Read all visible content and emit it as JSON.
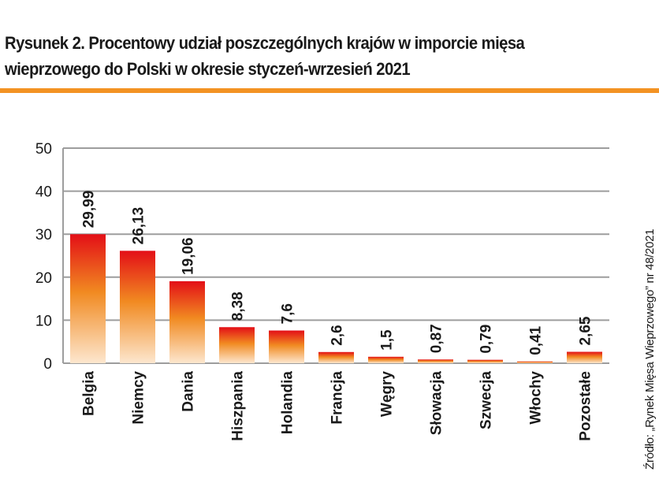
{
  "title_line1": "Rysunek 2. Procentowy udział poszczególnych krajów w imporcie mięsa",
  "title_line2": "wieprzowego do Polski w okresie styczeń-wrzesień 2021",
  "source": "Źródło: „Rynek Mięsa Wieprzowego” nr 48/2021",
  "colors": {
    "accent_rule": "#f39323",
    "bar_top": "#e30f17",
    "bar_mid": "#f18a21",
    "bar_bottom": "#fde7cf",
    "grid": "#9d9d9d"
  },
  "chart_data": {
    "type": "bar",
    "title": "Rysunek 2. Procentowy udział poszczególnych krajów w imporcie mięsa wieprzowego do Polski w okresie styczeń-wrzesień 2021",
    "xlabel": "",
    "ylabel": "",
    "ylim": [
      0,
      50
    ],
    "yticks": [
      0,
      10,
      20,
      30,
      40,
      50
    ],
    "grid": true,
    "categories": [
      "Belgia",
      "Niemcy",
      "Dania",
      "Hiszpania",
      "Holandia",
      "Francja",
      "Węgry",
      "Słowacja",
      "Szwecja",
      "Włochy",
      "Pozostałe"
    ],
    "values": [
      29.99,
      26.13,
      19.06,
      8.38,
      7.6,
      2.6,
      1.5,
      0.87,
      0.79,
      0.41,
      2.65
    ],
    "value_labels": [
      "29,99",
      "26,13",
      "19,06",
      "8,38",
      "7,6",
      "2,6",
      "1,5",
      "0,87",
      "0,79",
      "0,41",
      "2,65"
    ]
  }
}
